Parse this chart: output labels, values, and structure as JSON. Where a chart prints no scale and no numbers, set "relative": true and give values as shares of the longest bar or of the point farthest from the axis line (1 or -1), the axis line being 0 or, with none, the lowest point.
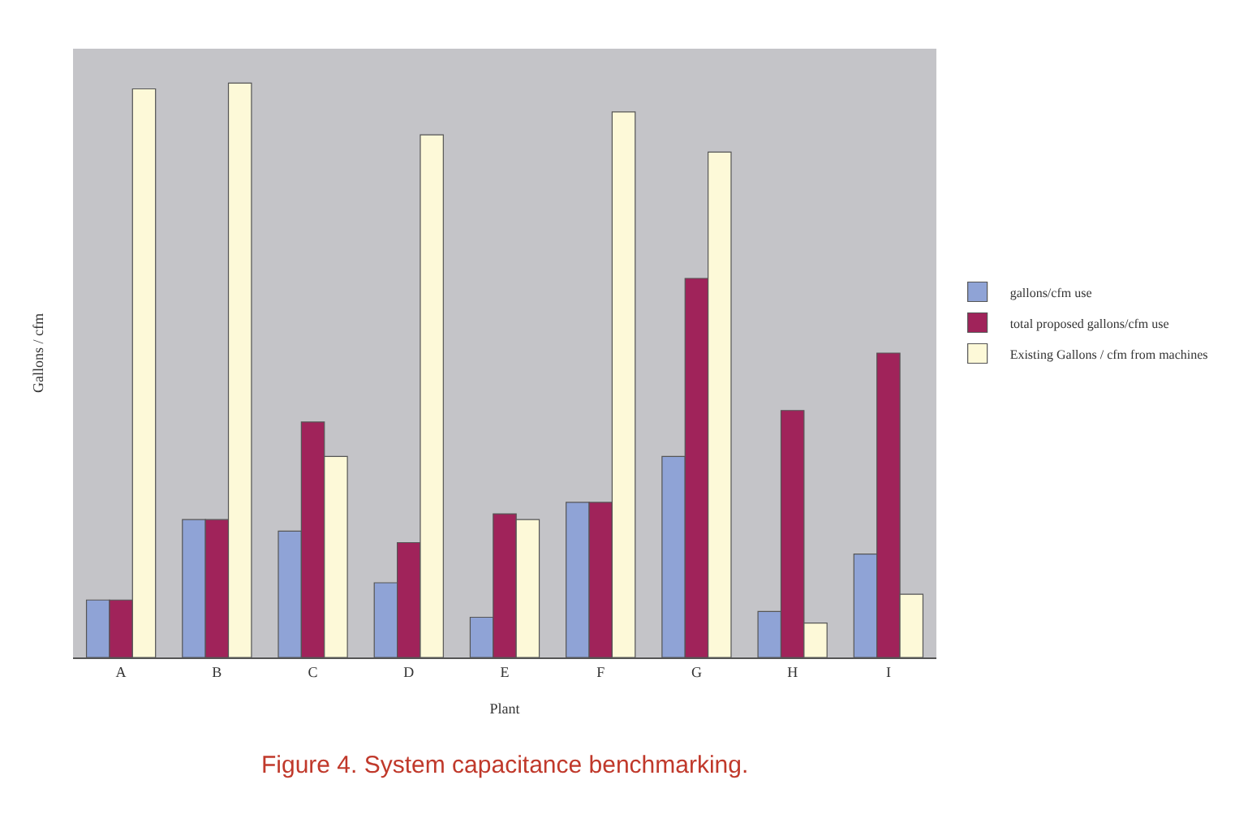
{
  "chart_data": {
    "type": "bar",
    "relative": true,
    "xlabel": "Plant",
    "ylabel": "Gallons / cfm",
    "categories": [
      "A",
      "B",
      "C",
      "D",
      "E",
      "F",
      "G",
      "H",
      "I"
    ],
    "series": [
      {
        "name": "gallons/cfm use",
        "color": "#8fa3d6",
        "values": [
          0.1,
          0.24,
          0.22,
          0.13,
          0.07,
          0.27,
          0.35,
          0.08,
          0.18
        ]
      },
      {
        "name": "total proposed gallons/cfm use",
        "color": "#a0235a",
        "values": [
          0.1,
          0.24,
          0.41,
          0.2,
          0.25,
          0.27,
          0.66,
          0.43,
          0.53
        ]
      },
      {
        "name": "Existing Gallons / cfm from machines",
        "color": "#fdf9d8",
        "values": [
          0.99,
          1.0,
          0.35,
          0.91,
          0.24,
          0.95,
          0.88,
          0.06,
          0.11
        ]
      }
    ],
    "legend": "right",
    "annotations": [
      "Figure 4. System capacitance benchmarking."
    ]
  }
}
